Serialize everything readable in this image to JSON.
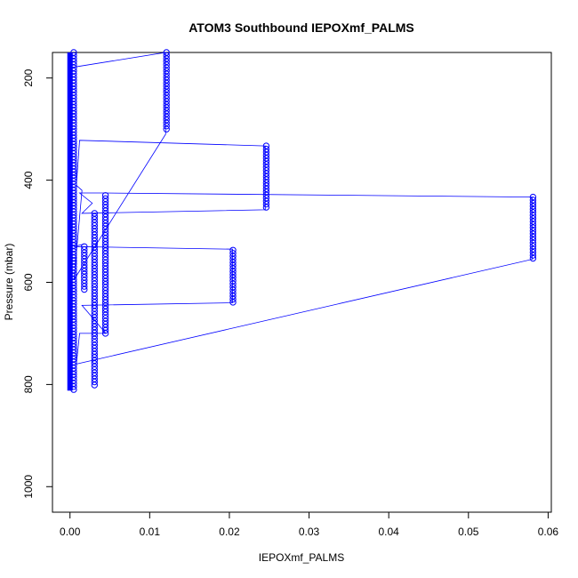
{
  "chart_data": {
    "type": "scatter",
    "title": "ATOM3 Southbound IEPOXmf_PALMS",
    "xlabel": "IEPOXmf_PALMS",
    "ylabel": "Pressure (mbar)",
    "xlim": [
      -0.0022,
      0.0604
    ],
    "ylim": [
      1050,
      150
    ],
    "y_reversed": true,
    "x_ticks": [
      "0.00",
      "0.01",
      "0.02",
      "0.03",
      "0.04",
      "0.05",
      "0.06"
    ],
    "x_tick_values": [
      0,
      0.01,
      0.02,
      0.03,
      0.04,
      0.05,
      0.06
    ],
    "y_ticks": [
      "200",
      "400",
      "600",
      "800",
      "1000"
    ],
    "y_tick_values": [
      200,
      400,
      600,
      800,
      1000
    ],
    "grid": false,
    "legend": "none",
    "marker": "open-circle",
    "color": "#0000ff",
    "series": [
      {
        "points": [
          [
            0,
            150
          ],
          [
            0,
            250
          ],
          [
            0,
            350
          ],
          [
            0,
            450
          ],
          [
            0,
            550
          ],
          [
            0,
            650
          ],
          [
            0,
            750
          ],
          [
            0,
            812
          ],
          [
            0.0003,
            260
          ],
          [
            0.0005,
            300
          ],
          [
            0.0006,
            340
          ],
          [
            0.0008,
            380
          ],
          [
            0.0009,
            420
          ],
          [
            0.0011,
            450
          ],
          [
            0.0013,
            480
          ],
          [
            0.0005,
            570
          ],
          [
            0.0007,
            600
          ],
          [
            0.0005,
            640
          ],
          [
            0.0008,
            700
          ],
          [
            0.0006,
            740
          ],
          [
            0.0009,
            770
          ],
          [
            0.0007,
            800
          ],
          [
            0.0017,
            530
          ],
          [
            0.0018,
            545
          ],
          [
            0.0019,
            615
          ],
          [
            0.0028,
            465
          ],
          [
            0.0029,
            520
          ],
          [
            0.0031,
            680
          ],
          [
            0.0033,
            700
          ],
          [
            0.0031,
            790
          ],
          [
            0.0033,
            805
          ],
          [
            0.0042,
            430
          ],
          [
            0.0045,
            480
          ],
          [
            0.0046,
            500
          ],
          [
            0.0045,
            700
          ],
          [
            0.012,
            150
          ],
          [
            0.0121,
            200
          ],
          [
            0.0122,
            250
          ],
          [
            0.0121,
            300
          ],
          [
            0.0204,
            537
          ],
          [
            0.0205,
            580
          ],
          [
            0.0205,
            620
          ],
          [
            0.0204,
            642
          ],
          [
            0.0246,
            333
          ],
          [
            0.0246,
            380
          ],
          [
            0.0247,
            420
          ],
          [
            0.0246,
            455
          ],
          [
            0.058,
            433
          ],
          [
            0.0581,
            480
          ],
          [
            0.0582,
            520
          ],
          [
            0.0581,
            555
          ]
        ],
        "path": [
          [
            0,
            180
          ],
          [
            0.012,
            150
          ],
          [
            0.012,
            310
          ],
          [
            0.0005,
            595
          ],
          [
            0.0015,
            420
          ],
          [
            0.0008,
            410
          ],
          [
            0.0012,
            322
          ],
          [
            0.0245,
            333
          ],
          [
            0.0245,
            458
          ],
          [
            0.0015,
            465
          ],
          [
            0.0028,
            445
          ],
          [
            0.0012,
            425
          ],
          [
            0.0042,
            425
          ],
          [
            0.058,
            433
          ],
          [
            0.058,
            555
          ],
          [
            0.0008,
            760
          ],
          [
            0.0012,
            700
          ],
          [
            0.0045,
            700
          ],
          [
            0.0015,
            645
          ],
          [
            0.0204,
            640
          ],
          [
            0.0204,
            535
          ],
          [
            0.0005,
            530
          ],
          [
            0.0018,
            525
          ]
        ]
      }
    ]
  }
}
